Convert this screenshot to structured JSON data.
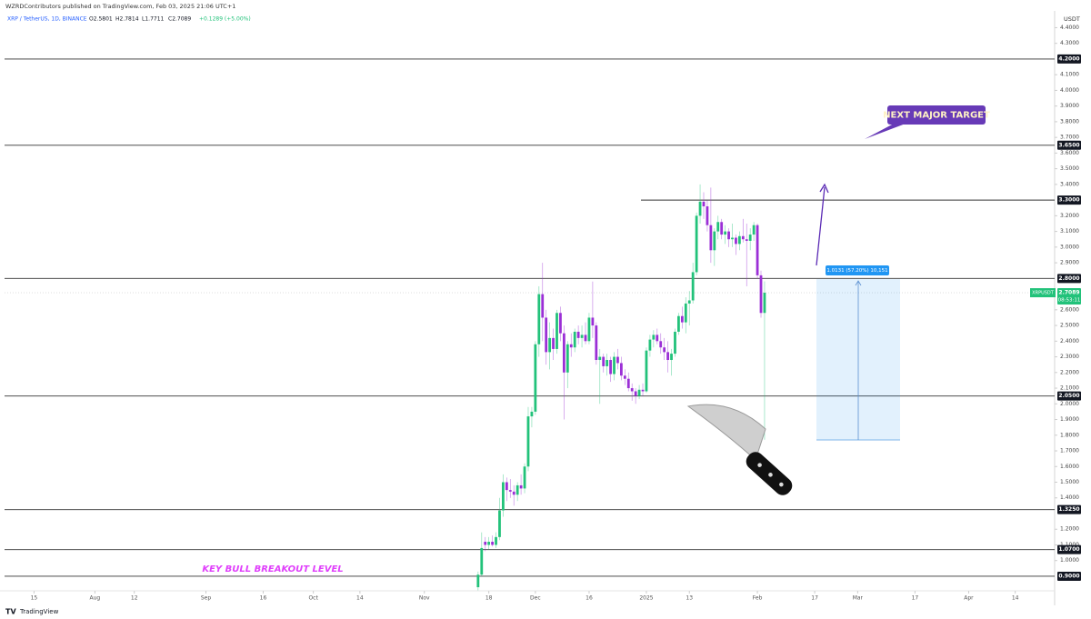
{
  "header": {
    "publisher": "WZRDContributors published on TradingView.com, Feb 03, 2025 21:06 UTC+1",
    "logo": "TradingView"
  },
  "chart_data": {
    "type": "candlestick",
    "symbol": "XRP / TetherUS, 1D, BINANCE",
    "ohlc_legend": [
      "O2.5801",
      "H2.7814",
      "L1.7711",
      "C2.7089",
      "+0.1289 (+5.00%)"
    ],
    "currency": "USDT",
    "x": [
      0,
      1,
      2,
      3,
      4,
      5,
      6,
      7,
      8,
      9,
      10,
      11,
      12,
      13,
      14,
      15,
      16,
      17,
      18,
      19,
      20,
      21,
      22,
      23,
      24,
      25,
      26,
      27,
      28,
      29,
      30,
      31,
      32,
      33,
      34,
      35,
      36,
      37,
      38,
      39,
      40,
      41,
      42,
      43,
      44,
      45,
      46,
      47,
      48,
      49,
      50,
      51,
      52,
      53,
      54,
      55,
      56,
      57,
      58,
      59,
      60,
      61,
      62,
      63,
      64,
      65,
      66,
      67,
      68,
      69,
      70,
      71,
      72,
      73,
      74,
      75,
      76,
      77,
      78,
      79,
      80
    ],
    "open": [
      0.83,
      0.91,
      1.12,
      1.1,
      1.12,
      1.1,
      1.15,
      1.32,
      1.5,
      1.45,
      1.44,
      1.42,
      1.48,
      1.46,
      1.6,
      1.92,
      1.95,
      2.38,
      2.7,
      2.55,
      2.33,
      2.42,
      2.35,
      2.58,
      2.45,
      2.2,
      2.38,
      2.36,
      2.46,
      2.42,
      2.44,
      2.4,
      2.55,
      2.5,
      2.28,
      2.3,
      2.24,
      2.28,
      2.19,
      2.3,
      2.26,
      2.18,
      2.16,
      2.1,
      2.08,
      2.05,
      2.09,
      2.08,
      2.34,
      2.41,
      2.44,
      2.4,
      2.36,
      2.33,
      2.28,
      2.32,
      2.46,
      2.56,
      2.52,
      2.64,
      2.66,
      2.84,
      3.2,
      3.29,
      3.26,
      3.14,
      2.98,
      3.1,
      3.16,
      3.08,
      3.1,
      3.05,
      3.06,
      3.02,
      3.07,
      3.05,
      3.04,
      3.08,
      3.14,
      2.82,
      2.5801
    ],
    "high": [
      0.93,
      1.18,
      1.15,
      1.15,
      1.16,
      1.18,
      1.4,
      1.55,
      1.53,
      1.52,
      1.48,
      1.5,
      1.55,
      1.62,
      1.98,
      1.98,
      2.4,
      2.75,
      2.9,
      2.6,
      2.52,
      2.48,
      2.6,
      2.62,
      2.5,
      2.4,
      2.45,
      2.48,
      2.5,
      2.5,
      2.52,
      2.58,
      2.78,
      2.52,
      2.35,
      2.32,
      2.32,
      2.3,
      2.33,
      2.35,
      2.3,
      2.22,
      2.2,
      2.13,
      2.1,
      2.12,
      2.13,
      2.36,
      2.44,
      2.47,
      2.48,
      2.45,
      2.42,
      2.4,
      2.35,
      2.48,
      2.58,
      2.62,
      2.68,
      2.72,
      2.9,
      3.22,
      3.4,
      3.35,
      3.3,
      3.38,
      3.12,
      3.2,
      3.18,
      3.14,
      3.12,
      3.15,
      3.08,
      3.1,
      3.18,
      3.15,
      3.12,
      3.16,
      3.15,
      2.85,
      2.7814
    ],
    "low": [
      0.81,
      0.9,
      1.06,
      1.07,
      1.09,
      1.08,
      1.13,
      1.28,
      1.38,
      1.4,
      1.35,
      1.38,
      1.42,
      1.43,
      1.57,
      1.85,
      1.93,
      2.3,
      2.4,
      2.25,
      2.22,
      2.28,
      2.32,
      2.4,
      1.9,
      2.1,
      2.3,
      2.33,
      2.38,
      2.36,
      2.38,
      2.38,
      2.42,
      2.25,
      2.0,
      2.2,
      2.18,
      2.14,
      2.15,
      2.22,
      2.15,
      2.12,
      2.08,
      2.02,
      2.0,
      2.03,
      2.05,
      2.07,
      2.3,
      2.36,
      2.38,
      2.32,
      2.28,
      2.2,
      2.18,
      2.3,
      2.44,
      2.48,
      2.45,
      2.5,
      2.64,
      2.82,
      3.15,
      3.18,
      3.1,
      2.9,
      2.88,
      3.05,
      3.05,
      3.02,
      3.0,
      3.0,
      2.95,
      2.98,
      3.03,
      2.75,
      2.98,
      3.04,
      2.8,
      2.55,
      1.7711
    ],
    "close": [
      0.91,
      1.08,
      1.1,
      1.12,
      1.1,
      1.15,
      1.32,
      1.5,
      1.45,
      1.44,
      1.42,
      1.48,
      1.46,
      1.6,
      1.92,
      1.95,
      2.38,
      2.7,
      2.55,
      2.33,
      2.42,
      2.35,
      2.58,
      2.45,
      2.2,
      2.38,
      2.36,
      2.46,
      2.42,
      2.44,
      2.4,
      2.55,
      2.5,
      2.28,
      2.3,
      2.24,
      2.28,
      2.19,
      2.3,
      2.26,
      2.18,
      2.16,
      2.1,
      2.08,
      2.05,
      2.09,
      2.08,
      2.34,
      2.41,
      2.44,
      2.4,
      2.36,
      2.33,
      2.28,
      2.32,
      2.46,
      2.56,
      2.52,
      2.64,
      2.66,
      2.84,
      3.2,
      3.29,
      3.26,
      3.14,
      2.98,
      3.1,
      3.16,
      3.08,
      3.1,
      3.05,
      3.06,
      3.02,
      3.07,
      3.05,
      3.04,
      3.08,
      3.14,
      2.82,
      2.58,
      2.7089
    ],
    "up_color": "#22c27a",
    "down_color": "#9b2fd6",
    "xlim": [
      -133.5,
      161
    ],
    "xticks": [
      {
        "value": -124,
        "label": "15"
      },
      {
        "value": -107,
        "label": "Aug"
      },
      {
        "value": -96,
        "label": "12"
      },
      {
        "value": -76,
        "label": "Sep"
      },
      {
        "value": -60,
        "label": "16"
      },
      {
        "value": -46,
        "label": "Oct"
      },
      {
        "value": -33,
        "label": "14"
      },
      {
        "value": -15,
        "label": "Nov"
      },
      {
        "value": 3,
        "label": "18"
      },
      {
        "value": 16,
        "label": "Dec"
      },
      {
        "value": 31,
        "label": "16"
      },
      {
        "value": 47,
        "label": "2025"
      },
      {
        "value": 59,
        "label": "13"
      },
      {
        "value": 78,
        "label": "Feb"
      },
      {
        "value": 94,
        "label": "17"
      },
      {
        "value": 106,
        "label": "Mar"
      },
      {
        "value": 122,
        "label": "17"
      },
      {
        "value": 137,
        "label": "Apr"
      },
      {
        "value": 150,
        "label": "14"
      }
    ],
    "ylim": [
      0.807,
      4.507
    ],
    "yticks": [
      {
        "value": 1.0,
        "label": "1.0000"
      },
      {
        "value": 1.1,
        "label": "1.1000"
      },
      {
        "value": 1.2,
        "label": "1.2000"
      },
      {
        "value": 1.4,
        "label": "1.4000"
      },
      {
        "value": 1.5,
        "label": "1.5000"
      },
      {
        "value": 1.6,
        "label": "1.6000"
      },
      {
        "value": 1.7,
        "label": "1.7000"
      },
      {
        "value": 1.8,
        "label": "1.8000"
      },
      {
        "value": 1.9,
        "label": "1.9000"
      },
      {
        "value": 2.0,
        "label": "2.0000"
      },
      {
        "value": 2.1,
        "label": "2.1000"
      },
      {
        "value": 2.2,
        "label": "2.2000"
      },
      {
        "value": 2.3,
        "label": "2.3000"
      },
      {
        "value": 2.4,
        "label": "2.4000"
      },
      {
        "value": 2.5,
        "label": "2.5000"
      },
      {
        "value": 2.6,
        "label": "2.6000"
      },
      {
        "value": 2.9,
        "label": "2.9000"
      },
      {
        "value": 3.0,
        "label": "3.0000"
      },
      {
        "value": 3.1,
        "label": "3.1000"
      },
      {
        "value": 3.2,
        "label": "3.2000"
      },
      {
        "value": 3.4,
        "label": "3.4000"
      },
      {
        "value": 3.5,
        "label": "3.5000"
      },
      {
        "value": 3.6,
        "label": "3.6000"
      },
      {
        "value": 3.7,
        "label": "3.7000"
      },
      {
        "value": 3.8,
        "label": "3.8000"
      },
      {
        "value": 3.9,
        "label": "3.9000"
      },
      {
        "value": 4.0,
        "label": "4.0000"
      },
      {
        "value": 4.1,
        "label": "4.1000"
      },
      {
        "value": 4.3,
        "label": "4.3000"
      },
      {
        "value": 4.4,
        "label": "4.4000"
      }
    ],
    "levels": [
      {
        "value": 4.2,
        "label": "4.2000"
      },
      {
        "value": 3.65,
        "label": "3.6500"
      },
      {
        "value": 3.3,
        "label": "3.3000"
      },
      {
        "value": 2.8,
        "label": "2.8000"
      },
      {
        "value": 2.05,
        "label": "2.0500"
      },
      {
        "value": 1.325,
        "label": "1.3250"
      },
      {
        "value": 1.07,
        "label": "1.0700"
      },
      {
        "value": 0.9,
        "label": "0.9000"
      }
    ],
    "last_price": {
      "symbol": "XRPUSDT",
      "value": 2.7089,
      "label": "2.7089",
      "countdown": "08:53:11"
    },
    "annotations": {
      "target": "NEXT MAJOR TARGET",
      "breakout": "KEY BULL BREAKOUT LEVEL",
      "measure": "1.0131 (57.20%) 10,151"
    }
  }
}
